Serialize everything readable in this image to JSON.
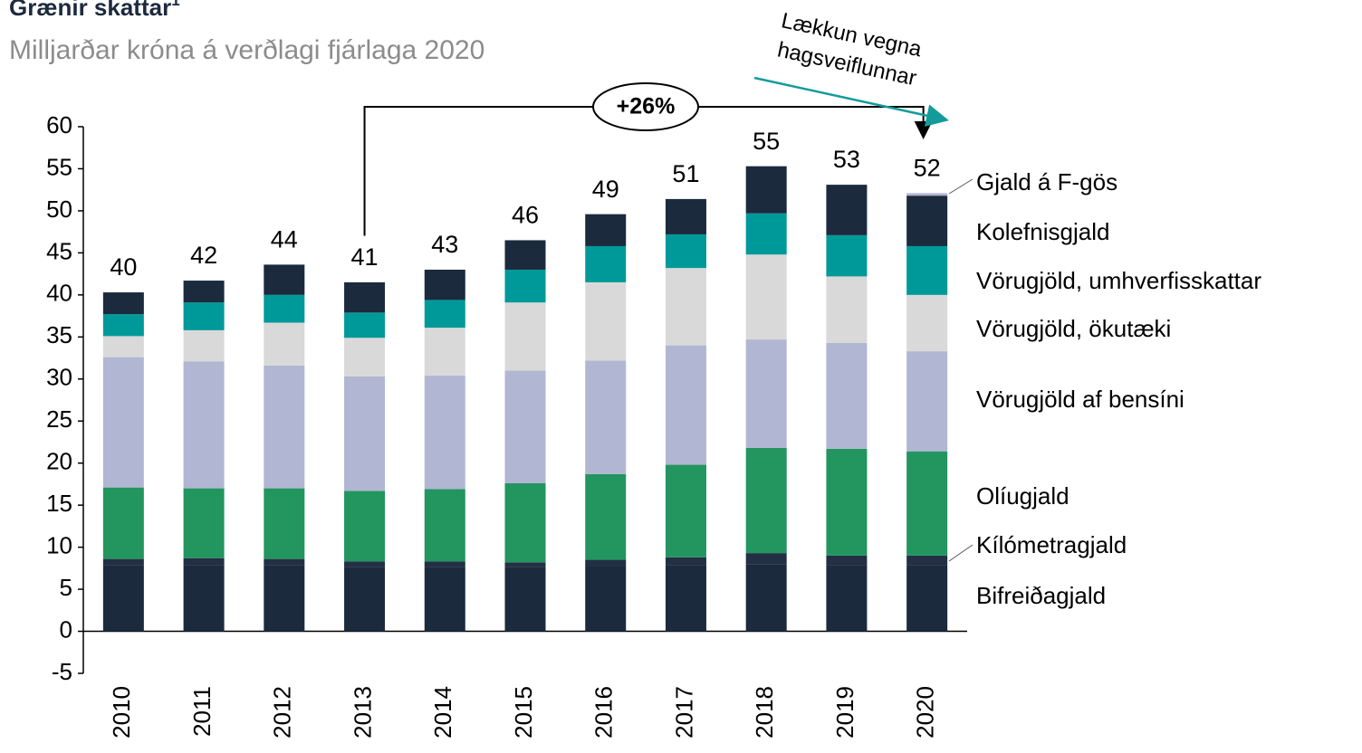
{
  "chart_data": {
    "type": "bar",
    "stacked": true,
    "title": "Grænir skattar",
    "title_footnote": "1",
    "subtitle": "Milljarðar króna á verðlagi fjárlaga 2020",
    "categories": [
      "2010",
      "2011",
      "2012",
      "2013",
      "2014",
      "2015",
      "2016",
      "2017",
      "2018",
      "2019",
      "2020"
    ],
    "series": [
      {
        "name": "Bifreiðagjald",
        "color": "#1c2a3e",
        "values": [
          7.9,
          7.9,
          7.9,
          7.6,
          7.6,
          7.6,
          7.7,
          7.9,
          8.0,
          7.9,
          7.9
        ]
      },
      {
        "name": "Kílómetragjald",
        "color": "#222f44",
        "values": [
          0.7,
          0.8,
          0.7,
          0.7,
          0.7,
          0.6,
          0.8,
          0.9,
          1.3,
          1.1,
          1.1
        ]
      },
      {
        "name": "Olíugjald",
        "color": "#23955f",
        "values": [
          8.5,
          8.3,
          8.4,
          8.4,
          8.6,
          9.4,
          10.2,
          11.0,
          12.5,
          12.7,
          12.4
        ]
      },
      {
        "name": "Vörugjöld af bensíni",
        "color": "#b1b6d3",
        "values": [
          15.5,
          15.1,
          14.6,
          13.6,
          13.5,
          13.4,
          13.5,
          14.2,
          12.9,
          12.6,
          11.9
        ]
      },
      {
        "name": "Vörugjöld, ökutæki",
        "color": "#d9d9d9",
        "values": [
          2.5,
          3.7,
          5.1,
          4.6,
          5.7,
          8.1,
          9.3,
          9.2,
          10.1,
          7.9,
          6.7
        ]
      },
      {
        "name": "Vörugjöld, umhverfisskattar",
        "color": "#009999",
        "values": [
          2.6,
          3.3,
          3.3,
          3.0,
          3.3,
          3.9,
          4.3,
          4.0,
          4.9,
          4.9,
          5.8
        ]
      },
      {
        "name": "Kolefnisgjald",
        "color": "#1c2a3e",
        "values": [
          2.6,
          2.6,
          3.6,
          3.6,
          3.6,
          3.5,
          3.8,
          4.2,
          5.6,
          6.0,
          6.0
        ]
      },
      {
        "name": "Gjald á F-gös",
        "color": "#b1b6d3",
        "values": [
          0,
          0,
          0,
          0,
          0,
          0,
          0,
          0,
          0,
          0,
          0.3
        ]
      }
    ],
    "totals": [
      40,
      42,
      44,
      41,
      43,
      46,
      49,
      51,
      55,
      53,
      52
    ],
    "ylim": [
      -5,
      60
    ],
    "yticks": [
      -5,
      0,
      5,
      10,
      15,
      20,
      25,
      30,
      35,
      40,
      45,
      50,
      55,
      60
    ],
    "grid": false,
    "annotations": {
      "change": "+26%",
      "note": [
        "Lækkun vegna",
        "hagsveiflunnar"
      ]
    }
  }
}
